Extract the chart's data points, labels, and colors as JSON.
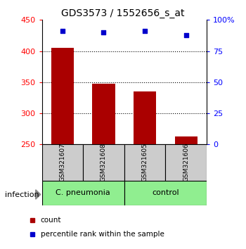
{
  "title": "GDS3573 / 1552656_s_at",
  "samples": [
    "GSM321607",
    "GSM321608",
    "GSM321605",
    "GSM321606"
  ],
  "bar_values": [
    405,
    347,
    335,
    263
  ],
  "percentile_values": [
    91,
    90,
    91,
    88
  ],
  "bar_color": "#aa0000",
  "percentile_color": "#0000cc",
  "ylim_left": [
    250,
    450
  ],
  "ylim_right": [
    0,
    100
  ],
  "yticks_left": [
    250,
    300,
    350,
    400,
    450
  ],
  "yticks_right": [
    0,
    25,
    50,
    75,
    100
  ],
  "ytick_labels_right": [
    "0",
    "25",
    "50",
    "75",
    "100%"
  ],
  "group1_label": "C. pneumonia",
  "group2_label": "control",
  "group_color": "#90EE90",
  "sample_box_color": "#cccccc",
  "infection_label": "infection",
  "legend_red_label": "count",
  "legend_blue_label": "percentile rank within the sample",
  "bar_width": 0.55,
  "title_fontsize": 10,
  "tick_fontsize": 8,
  "sample_fontsize": 6.5,
  "group_fontsize": 8,
  "legend_fontsize": 7.5,
  "infection_fontsize": 8
}
